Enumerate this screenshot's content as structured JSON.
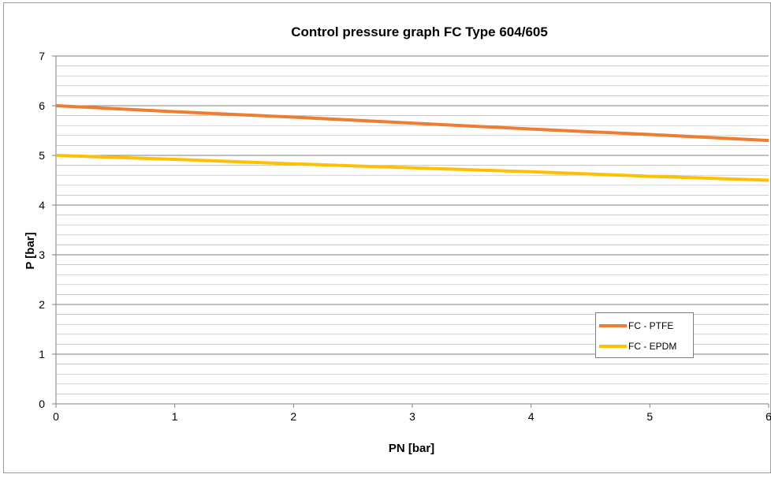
{
  "chart_data": {
    "type": "line",
    "title": "Control pressure graph FC Type 604/605",
    "xlabel": "PN [bar]",
    "ylabel": "P [bar]",
    "xlim": [
      0,
      6
    ],
    "ylim": [
      0,
      7
    ],
    "x_ticks": [
      "0",
      "1",
      "2",
      "3",
      "4",
      "5",
      "6"
    ],
    "y_ticks": [
      "0",
      "1",
      "2",
      "3",
      "4",
      "5",
      "6",
      "7"
    ],
    "minor_gridlines_per_unit": 5,
    "grid": true,
    "legend_position": "bottom-right",
    "series": [
      {
        "name": "FC - PTFE",
        "color": "#ED7D31",
        "x": [
          0,
          1,
          2,
          3,
          4,
          5,
          6
        ],
        "y": [
          6.0,
          5.88,
          5.77,
          5.65,
          5.53,
          5.42,
          5.3
        ]
      },
      {
        "name": "FC - EPDM",
        "color": "#FFC000",
        "x": [
          0,
          1,
          2,
          3,
          4,
          5,
          6
        ],
        "y": [
          5.0,
          4.92,
          4.83,
          4.75,
          4.67,
          4.58,
          4.5
        ]
      }
    ]
  }
}
